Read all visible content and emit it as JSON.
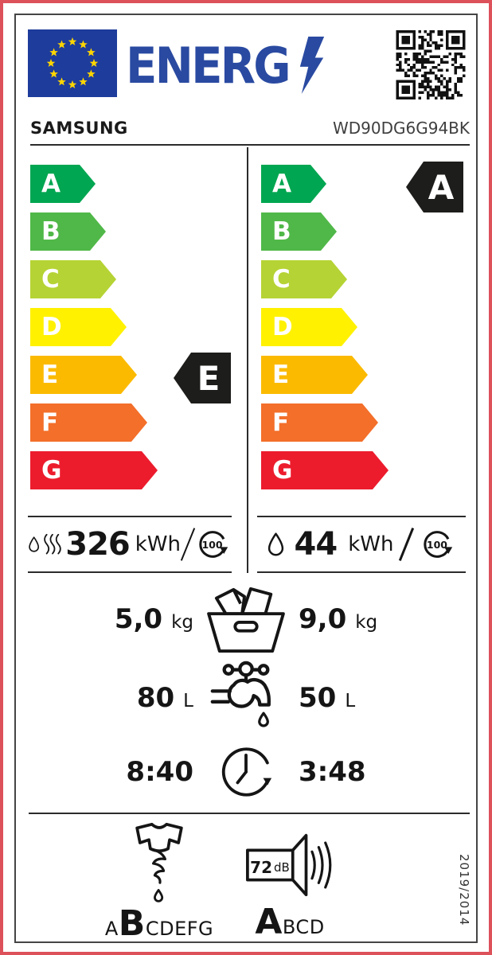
{
  "frame": {
    "accent_border_color": "#dd515a"
  },
  "header": {
    "logo_text": "ENERG",
    "brand": "SAMSUNG",
    "model": "WD90DG6G94BK"
  },
  "scale": {
    "grades": [
      {
        "letter": "A",
        "color": "#00a651"
      },
      {
        "letter": "B",
        "color": "#50b848"
      },
      {
        "letter": "C",
        "color": "#b5d334"
      },
      {
        "letter": "D",
        "color": "#fff100"
      },
      {
        "letter": "E",
        "color": "#fbba00"
      },
      {
        "letter": "F",
        "color": "#f36f2a"
      },
      {
        "letter": "G",
        "color": "#ec1c2d"
      }
    ]
  },
  "left_column": {
    "rating": "E",
    "energy_value": "326",
    "energy_unit": "kWh",
    "cycles": "100"
  },
  "right_column": {
    "rating": "A",
    "energy_value": "44",
    "energy_unit": "kWh",
    "cycles": "100"
  },
  "rows": {
    "capacity": {
      "left": "5,0",
      "right": "9,0",
      "unit": "kg"
    },
    "water": {
      "left": "80",
      "right": "50",
      "unit": "L"
    },
    "duration": {
      "left": "8:40",
      "right": "3:48"
    }
  },
  "spin_class": {
    "before": "A",
    "rating": "B",
    "after": "CDEFG"
  },
  "noise": {
    "value": "72",
    "unit": "dB",
    "rating": "A",
    "after": "BCD"
  },
  "regulation": "2019/2014",
  "icons": {
    "header": [
      "eu-flag-icon",
      "lightning-bolt-icon",
      "qr-code"
    ],
    "left_energy": [
      "water-drop-icon",
      "heat-waves-icon",
      "cycles-loop-icon"
    ],
    "right_energy": [
      "water-drop-icon",
      "cycles-loop-icon"
    ],
    "middle": [
      "laundry-basket-icon",
      "water-tap-icon",
      "clock-icon"
    ],
    "bottom": [
      "wring-drip-icon",
      "speaker-noise-icon"
    ]
  }
}
